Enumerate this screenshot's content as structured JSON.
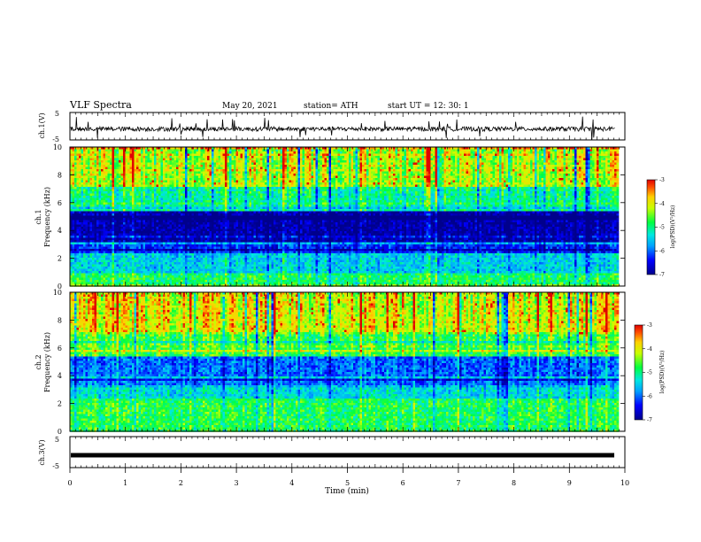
{
  "header": {
    "title": "VLF Spectra",
    "date": "May 20, 2021",
    "station": "station= ATH",
    "start": "start  UT  =   12: 30: 1"
  },
  "chart_data": [
    {
      "type": "line",
      "panel": "ch1-waveform",
      "ylabel": "ch.1(V)",
      "ytick_labels": [
        "5",
        "-5"
      ],
      "ylim": [
        -5,
        5
      ],
      "xlim": [
        0,
        10
      ],
      "baseline_value": -1,
      "color": "#000000"
    },
    {
      "type": "heatmap",
      "panel": "ch1-spectrogram",
      "ylabel_lines": [
        "ch.1",
        "Frequency  (kHz)"
      ],
      "ytick_labels": [
        "0",
        "2",
        "4",
        "6",
        "8",
        "10"
      ],
      "ylim": [
        0,
        10
      ],
      "xlim": [
        0,
        9.85
      ],
      "colorbar": {
        "label": "log(PSD)(V²/Hz)",
        "range": [
          -7,
          -3
        ],
        "tick_labels": [
          "-3",
          "-4",
          "-5",
          "-6",
          "-7"
        ]
      },
      "bands_khz": [
        {
          "from": 0.0,
          "to": 1.0,
          "level": -4.8
        },
        {
          "from": 1.0,
          "to": 2.4,
          "level": -5.4
        },
        {
          "from": 2.4,
          "to": 3.2,
          "level": -6.2
        },
        {
          "from": 3.2,
          "to": 5.4,
          "level": -6.8
        },
        {
          "from": 5.4,
          "to": 7.2,
          "level": -5.0
        },
        {
          "from": 7.2,
          "to": 10.0,
          "level": -4.2
        }
      ]
    },
    {
      "type": "heatmap",
      "panel": "ch2-spectrogram",
      "ylabel_lines": [
        "ch.2",
        "Frequency  (kHz)"
      ],
      "ytick_labels": [
        "0",
        "2",
        "4",
        "6",
        "8",
        "10"
      ],
      "ylim": [
        0,
        10
      ],
      "xlim": [
        0,
        9.85
      ],
      "colorbar": {
        "label": "log(PSD)(V²/Hz)",
        "range": [
          -7,
          -3
        ],
        "tick_labels": [
          "-3",
          "-4",
          "-5",
          "-6",
          "-7"
        ]
      },
      "bands_khz": [
        {
          "from": 0.0,
          "to": 2.4,
          "level": -5.0
        },
        {
          "from": 2.4,
          "to": 3.2,
          "level": -5.6
        },
        {
          "from": 3.2,
          "to": 5.4,
          "level": -6.2
        },
        {
          "from": 5.4,
          "to": 7.2,
          "level": -4.9
        },
        {
          "from": 7.2,
          "to": 10.0,
          "level": -4.2
        }
      ]
    },
    {
      "type": "line",
      "panel": "ch3-waveform",
      "ylabel": "ch.3(V)",
      "ytick_labels": [
        "5",
        "-5"
      ],
      "ylim": [
        -5,
        5
      ],
      "xlim": [
        0,
        10
      ],
      "baseline_value": -1,
      "color": "#000000",
      "xlabel": "Time  (min)",
      "xtick_labels": [
        "0",
        "1",
        "2",
        "3",
        "4",
        "5",
        "6",
        "7",
        "8",
        "9",
        "10"
      ]
    }
  ]
}
